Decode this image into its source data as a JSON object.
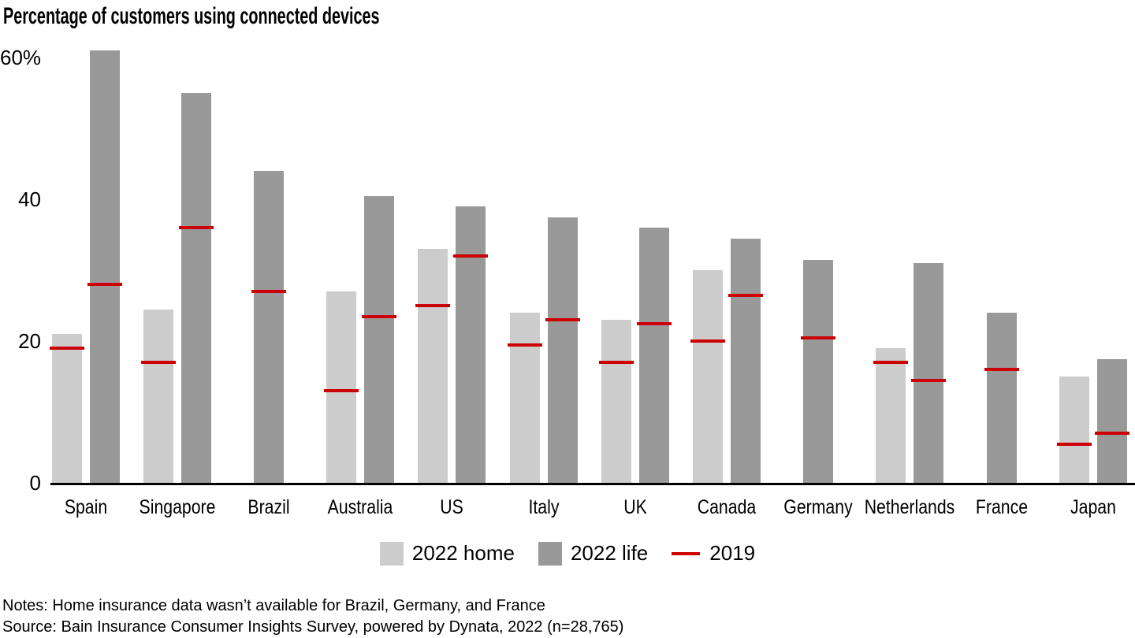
{
  "header": {
    "title": "Percentage of customers using connected devices"
  },
  "chart_data": {
    "type": "bar",
    "title": "Percentage of customers using connected devices",
    "categories": [
      "Spain",
      "Singapore",
      "Brazil",
      "Australia",
      "US",
      "Italy",
      "UK",
      "Canada",
      "Germany",
      "Netherlands",
      "France",
      "Japan"
    ],
    "series": [
      {
        "name": "2022 home",
        "type": "bar",
        "color": "#cccccc",
        "values": [
          21,
          24.5,
          null,
          27,
          33,
          24,
          23,
          30,
          null,
          19,
          null,
          15
        ]
      },
      {
        "name": "2022 life",
        "type": "bar",
        "color": "#999999",
        "values": [
          61,
          55,
          44,
          40.5,
          39,
          37.5,
          36,
          34.5,
          31.5,
          31,
          24,
          17.5
        ]
      },
      {
        "name": "2019",
        "type": "tick-marker",
        "color": "#cc0000",
        "home_values": [
          19,
          17,
          null,
          13,
          25,
          19.5,
          17,
          20,
          null,
          17,
          null,
          5.5
        ],
        "life_values": [
          28,
          36,
          27,
          23.5,
          32,
          23,
          22.5,
          26.5,
          20.5,
          14.5,
          16,
          7
        ]
      }
    ],
    "xlabel": "",
    "ylabel": "",
    "ylim": [
      0,
      60
    ],
    "yticks": [
      {
        "value": 0,
        "label": "0"
      },
      {
        "value": 20,
        "label": "20"
      },
      {
        "value": 40,
        "label": "40"
      },
      {
        "value": 60,
        "label": "60%"
      }
    ],
    "grid": false,
    "legend_position": "bottom"
  },
  "footer": {
    "notes": "Notes: Home insurance data wasn’t available for Brazil, Germany, and France",
    "source": "Source: Bain Insurance Consumer Insights Survey, powered by Dynata, 2022 (n=28,765)"
  }
}
